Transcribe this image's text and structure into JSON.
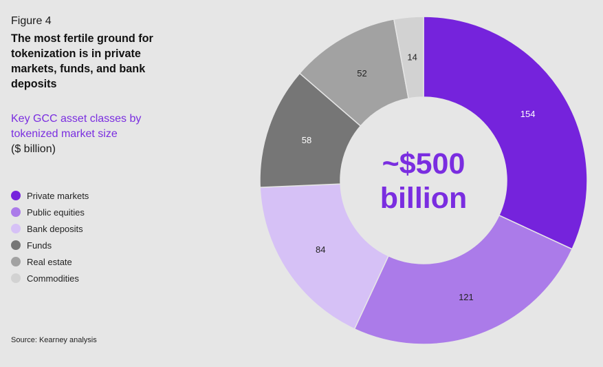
{
  "figure_label": "Figure 4",
  "headline": "The most fertile ground for tokenization is in private markets, funds, and bank deposits",
  "subtitle": "Key GCC asset classes by tokenized market size",
  "unit": "($ billion)",
  "source": "Source: Kearney analysis",
  "chart_data": {
    "type": "pie",
    "variant": "donut",
    "title": "Key GCC asset classes by tokenized market size",
    "unit": "($ billion)",
    "center_label": {
      "line1": "~$500",
      "line2": "billion"
    },
    "categories": [
      "Private markets",
      "Public equities",
      "Bank deposits",
      "Funds",
      "Real estate",
      "Commodities"
    ],
    "values": [
      154,
      121,
      84,
      58,
      52,
      14
    ],
    "colors": [
      "#7523dc",
      "#ab7be9",
      "#d6c1f6",
      "#767676",
      "#a2a2a2",
      "#d2d2d2"
    ],
    "label_colors": [
      "#ffffff",
      "#222222",
      "#222222",
      "#ffffff",
      "#222222",
      "#222222"
    ],
    "center_color": "#7a2de0",
    "legend_position": "left"
  }
}
